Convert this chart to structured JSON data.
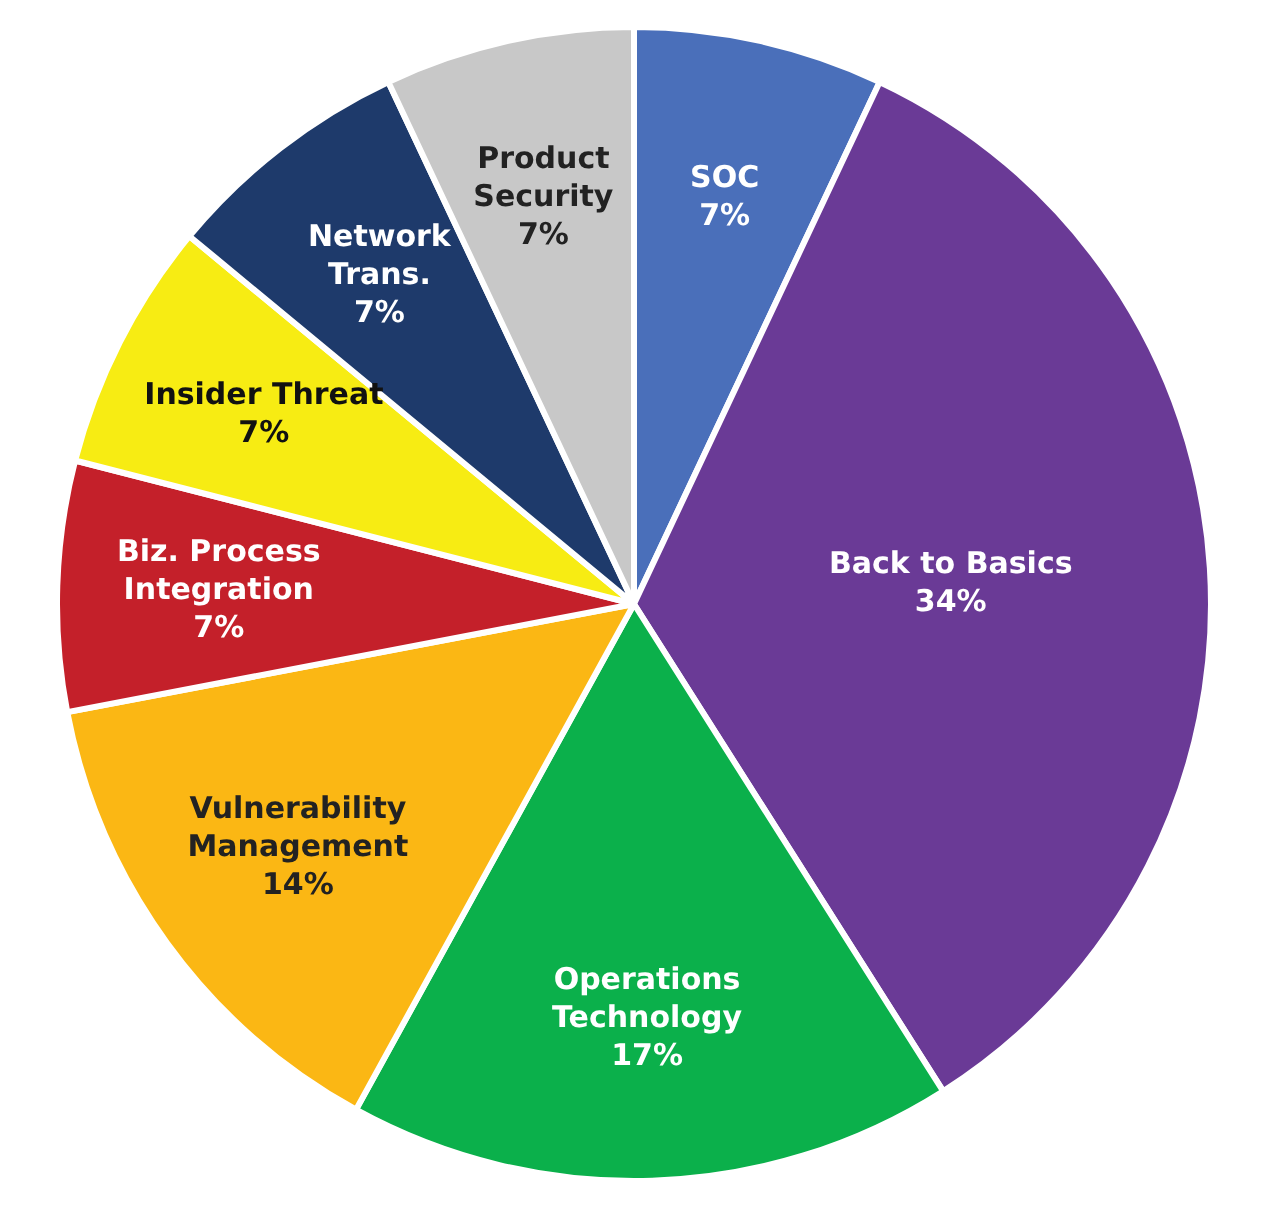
{
  "chart_data": {
    "type": "pie",
    "categories": [
      "SOC",
      "Back to Basics",
      "Operations Technology",
      "Vulnerability Management",
      "Biz. Process Integration",
      "Insider Threat",
      "Network Trans.",
      "Product Security"
    ],
    "values": [
      7,
      34,
      17,
      14,
      7,
      7,
      7,
      7
    ],
    "value_labels": [
      "7%",
      "34%",
      "17%",
      "14%",
      "7%",
      "7%",
      "7%",
      "7%"
    ],
    "colors": [
      "#4a6fba",
      "#6a3a96",
      "#0bb04b",
      "#fbb714",
      "#c4202a",
      "#f7ec13",
      "#1e3a6b",
      "#c8c8c8"
    ],
    "legend": false
  }
}
